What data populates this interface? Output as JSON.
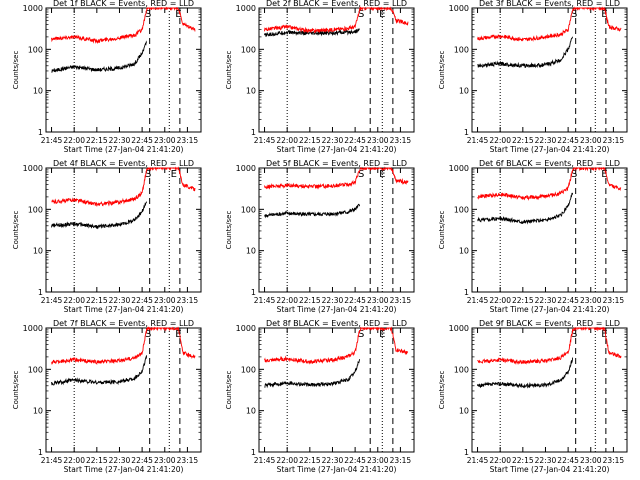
{
  "chart_data": [
    {
      "type": "line",
      "title": "Det 1f BLACK = Events, RED = LLD",
      "xlabel": "Start Time (27-Jan-04 21:41:20)",
      "ylabel": "Counts/sec",
      "x_ticks": [
        "21:45",
        "22:00",
        "22:15",
        "22:30",
        "22:45",
        "23:00",
        "23:15"
      ],
      "y_ticks": [
        "1",
        "10",
        "100",
        "1000"
      ],
      "ylim": [
        1,
        1000
      ],
      "y_scale": "log",
      "xlim": [
        "21:41:20",
        "23:24"
      ],
      "markers": [
        {
          "label": "S",
          "time": "22:49"
        },
        {
          "label": "E",
          "time": "23:09"
        }
      ],
      "dotted_lines": [
        "22:00",
        "23:03"
      ],
      "dashed_lines": [
        "22:50",
        "23:10"
      ],
      "series": [
        {
          "name": "BLACK",
          "color": "#000000",
          "x": [
            "21:45",
            "22:00",
            "22:15",
            "22:30",
            "22:40",
            "22:45",
            "22:48"
          ],
          "y": [
            30,
            38,
            32,
            35,
            45,
            80,
            150
          ]
        },
        {
          "name": "RED",
          "color": "#ff0000",
          "x": [
            "21:45",
            "22:00",
            "22:15",
            "22:30",
            "22:40",
            "22:45",
            "22:48",
            "22:49",
            "22:52",
            "23:09",
            "23:12",
            "23:20"
          ],
          "y": [
            180,
            200,
            160,
            190,
            220,
            300,
            900,
            1000,
            1000,
            1000,
            400,
            300
          ]
        }
      ]
    },
    {
      "type": "line",
      "title": "Det 2f BLACK = Events, RED = LLD",
      "xlabel": "Start Time (27-Jan-04 21:41:20)",
      "ylabel": "Counts/sec",
      "x_ticks": [
        "21:45",
        "22:00",
        "22:15",
        "22:30",
        "22:45",
        "23:00",
        "23:15"
      ],
      "y_ticks": [
        "1",
        "10",
        "100",
        "1000"
      ],
      "ylim": [
        1,
        1000
      ],
      "y_scale": "log",
      "markers": [
        {
          "label": "S",
          "time": "22:49"
        },
        {
          "label": "E",
          "time": "23:03"
        }
      ],
      "dotted_lines": [
        "22:00",
        "23:03"
      ],
      "dashed_lines": [
        "22:55",
        "23:10"
      ],
      "series": [
        {
          "name": "BLACK",
          "color": "#000000",
          "x": [
            "21:45",
            "22:00",
            "22:15",
            "22:30",
            "22:40",
            "22:45",
            "22:48"
          ],
          "y": [
            220,
            260,
            240,
            250,
            260,
            270,
            300
          ]
        },
        {
          "name": "RED",
          "color": "#ff0000",
          "x": [
            "21:45",
            "22:00",
            "22:15",
            "22:30",
            "22:40",
            "22:45",
            "22:48",
            "22:49",
            "22:52",
            "23:09",
            "23:12",
            "23:20"
          ],
          "y": [
            300,
            350,
            280,
            300,
            320,
            350,
            900,
            1000,
            1000,
            1000,
            500,
            420
          ]
        }
      ]
    },
    {
      "type": "line",
      "title": "Det 3f BLACK = Events, RED = LLD",
      "xlabel": "Start Time (27-Jan-04 21:41:20)",
      "ylabel": "Counts/sec",
      "x_ticks": [
        "21:45",
        "22:00",
        "22:15",
        "22:30",
        "22:45",
        "23:00",
        "23:15"
      ],
      "y_ticks": [
        "1",
        "10",
        "100",
        "1000"
      ],
      "ylim": [
        1,
        1000
      ],
      "y_scale": "log",
      "markers": [
        {
          "label": "S",
          "time": "22:49"
        },
        {
          "label": "E",
          "time": "23:09"
        }
      ],
      "dotted_lines": [
        "22:00",
        "23:03"
      ],
      "dashed_lines": [
        "22:50",
        "23:10"
      ],
      "series": [
        {
          "name": "BLACK",
          "color": "#000000",
          "x": [
            "21:45",
            "22:00",
            "22:15",
            "22:30",
            "22:40",
            "22:45",
            "22:48"
          ],
          "y": [
            40,
            45,
            40,
            42,
            55,
            100,
            200
          ]
        },
        {
          "name": "RED",
          "color": "#ff0000",
          "x": [
            "21:45",
            "22:00",
            "22:15",
            "22:30",
            "22:40",
            "22:45",
            "22:48",
            "22:49",
            "22:52",
            "23:09",
            "23:12",
            "23:20"
          ],
          "y": [
            180,
            210,
            170,
            200,
            230,
            300,
            900,
            1000,
            1000,
            1000,
            350,
            300
          ]
        }
      ]
    },
    {
      "type": "line",
      "title": "Det 4f BLACK = Events, RED = LLD",
      "xlabel": "Start Time (27-Jan-04 21:41:20)",
      "ylabel": "Counts/sec",
      "x_ticks": [
        "21:45",
        "22:00",
        "22:15",
        "22:30",
        "22:45",
        "23:00",
        "23:15"
      ],
      "y_ticks": [
        "1",
        "10",
        "100",
        "1000"
      ],
      "ylim": [
        1,
        1000
      ],
      "y_scale": "log",
      "markers": [
        {
          "label": "S",
          "time": "22:49"
        },
        {
          "label": "E",
          "time": "23:06"
        }
      ],
      "dotted_lines": [
        "22:00",
        "23:03"
      ],
      "dashed_lines": [
        "22:50",
        "23:10"
      ],
      "series": [
        {
          "name": "BLACK",
          "color": "#000000",
          "x": [
            "21:45",
            "22:00",
            "22:15",
            "22:30",
            "22:40",
            "22:45",
            "22:48"
          ],
          "y": [
            40,
            45,
            38,
            42,
            55,
            90,
            150
          ]
        },
        {
          "name": "RED",
          "color": "#ff0000",
          "x": [
            "21:45",
            "22:00",
            "22:15",
            "22:30",
            "22:40",
            "22:45",
            "22:48",
            "22:49",
            "22:52",
            "23:09",
            "23:12",
            "23:20"
          ],
          "y": [
            150,
            170,
            130,
            150,
            180,
            250,
            900,
            1000,
            1000,
            1000,
            400,
            300
          ]
        }
      ]
    },
    {
      "type": "line",
      "title": "Det 5f BLACK = Events, RED = LLD",
      "xlabel": "Start Time (27-Jan-04 21:41:20)",
      "ylabel": "Counts/sec",
      "x_ticks": [
        "21:45",
        "22:00",
        "22:15",
        "22:30",
        "22:45",
        "23:00",
        "23:15"
      ],
      "y_ticks": [
        "1",
        "10",
        "100",
        "1000"
      ],
      "ylim": [
        1,
        1000
      ],
      "y_scale": "log",
      "markers": [
        {
          "label": "S",
          "time": "22:49"
        },
        {
          "label": "E",
          "time": "23:03"
        }
      ],
      "dotted_lines": [
        "22:00",
        "23:03"
      ],
      "dashed_lines": [
        "22:55",
        "23:10"
      ],
      "series": [
        {
          "name": "BLACK",
          "color": "#000000",
          "x": [
            "21:45",
            "22:00",
            "22:15",
            "22:30",
            "22:40",
            "22:45",
            "22:48"
          ],
          "y": [
            70,
            80,
            75,
            78,
            85,
            100,
            130
          ]
        },
        {
          "name": "RED",
          "color": "#ff0000",
          "x": [
            "21:45",
            "22:00",
            "22:15",
            "22:30",
            "22:40",
            "22:45",
            "22:48",
            "22:49",
            "22:52",
            "23:09",
            "23:12",
            "23:20"
          ],
          "y": [
            350,
            380,
            360,
            370,
            400,
            450,
            900,
            1000,
            1000,
            1000,
            500,
            450
          ]
        }
      ]
    },
    {
      "type": "line",
      "title": "Det 6f BLACK = Events, RED = LLD",
      "xlabel": "Start Time (27-Jan-04 21:41:20)",
      "ylabel": "Counts/sec",
      "x_ticks": [
        "21:45",
        "22:00",
        "22:15",
        "22:30",
        "22:45",
        "23:00",
        "23:15"
      ],
      "y_ticks": [
        "1",
        "10",
        "100",
        "1000"
      ],
      "ylim": [
        1,
        1000
      ],
      "y_scale": "log",
      "markers": [
        {
          "label": "S",
          "time": "22:49"
        },
        {
          "label": "E",
          "time": "23:09"
        }
      ],
      "dotted_lines": [
        "22:00",
        "23:03"
      ],
      "dashed_lines": [
        "22:50",
        "23:10"
      ],
      "series": [
        {
          "name": "BLACK",
          "color": "#000000",
          "x": [
            "21:45",
            "22:00",
            "22:15",
            "22:30",
            "22:40",
            "22:45",
            "22:48"
          ],
          "y": [
            55,
            60,
            50,
            55,
            70,
            120,
            250
          ]
        },
        {
          "name": "RED",
          "color": "#ff0000",
          "x": [
            "21:45",
            "22:00",
            "22:15",
            "22:30",
            "22:40",
            "22:45",
            "22:48",
            "22:49",
            "22:52",
            "23:09",
            "23:12",
            "23:20"
          ],
          "y": [
            200,
            230,
            190,
            210,
            240,
            320,
            900,
            1000,
            1000,
            1000,
            400,
            300
          ]
        }
      ]
    },
    {
      "type": "line",
      "title": "Det 7f BLACK = Events, RED = LLD",
      "xlabel": "Start Time (27-Jan-04 21:41:20)",
      "ylabel": "Counts/sec",
      "x_ticks": [
        "21:45",
        "22:00",
        "22:15",
        "22:30",
        "22:45",
        "23:00",
        "23:15"
      ],
      "y_ticks": [
        "1",
        "10",
        "100",
        "1000"
      ],
      "ylim": [
        1,
        1000
      ],
      "y_scale": "log",
      "markers": [
        {
          "label": "S",
          "time": "22:49"
        },
        {
          "label": "E",
          "time": "23:09"
        }
      ],
      "dotted_lines": [
        "22:00",
        "23:03"
      ],
      "dashed_lines": [
        "22:50",
        "23:10"
      ],
      "series": [
        {
          "name": "BLACK",
          "color": "#000000",
          "x": [
            "21:45",
            "22:00",
            "22:15",
            "22:30",
            "22:40",
            "22:45",
            "22:48"
          ],
          "y": [
            45,
            55,
            48,
            50,
            60,
            90,
            200
          ]
        },
        {
          "name": "RED",
          "color": "#ff0000",
          "x": [
            "21:45",
            "22:00",
            "22:15",
            "22:30",
            "22:40",
            "22:45",
            "22:48",
            "22:49",
            "22:52",
            "23:09",
            "23:12",
            "23:20"
          ],
          "y": [
            150,
            170,
            150,
            160,
            190,
            250,
            900,
            1000,
            1000,
            1000,
            250,
            200
          ]
        }
      ]
    },
    {
      "type": "line",
      "title": "Det 8f BLACK = Events, RED = LLD",
      "xlabel": "Start Time (27-Jan-04 21:41:20)",
      "ylabel": "Counts/sec",
      "x_ticks": [
        "21:45",
        "22:00",
        "22:15",
        "22:30",
        "22:45",
        "23:00",
        "23:15"
      ],
      "y_ticks": [
        "1",
        "10",
        "100",
        "1000"
      ],
      "ylim": [
        1,
        1000
      ],
      "y_scale": "log",
      "markers": [
        {
          "label": "S",
          "time": "22:49"
        },
        {
          "label": "E",
          "time": "23:03"
        }
      ],
      "dotted_lines": [
        "22:00",
        "23:03"
      ],
      "dashed_lines": [
        "22:55",
        "23:10"
      ],
      "series": [
        {
          "name": "BLACK",
          "color": "#000000",
          "x": [
            "21:45",
            "22:00",
            "22:15",
            "22:30",
            "22:40",
            "22:45",
            "22:48"
          ],
          "y": [
            40,
            48,
            42,
            45,
            55,
            85,
            180
          ]
        },
        {
          "name": "RED",
          "color": "#ff0000",
          "x": [
            "21:45",
            "22:00",
            "22:15",
            "22:30",
            "22:40",
            "22:45",
            "22:48",
            "22:49",
            "22:52",
            "23:09",
            "23:12",
            "23:20"
          ],
          "y": [
            160,
            180,
            150,
            170,
            200,
            260,
            900,
            1000,
            1000,
            1000,
            300,
            250
          ]
        }
      ]
    },
    {
      "type": "line",
      "title": "Det 9f BLACK = Events, RED = LLD",
      "xlabel": "Start Time (27-Jan-04 21:41:20)",
      "ylabel": "Counts/sec",
      "x_ticks": [
        "21:45",
        "22:00",
        "22:15",
        "22:30",
        "22:45",
        "23:00",
        "23:15"
      ],
      "y_ticks": [
        "1",
        "10",
        "100",
        "1000"
      ],
      "ylim": [
        1,
        1000
      ],
      "y_scale": "log",
      "markers": [
        {
          "label": "S",
          "time": "22:49"
        },
        {
          "label": "E",
          "time": "23:09"
        }
      ],
      "dotted_lines": [
        "22:00",
        "23:03"
      ],
      "dashed_lines": [
        "22:50",
        "23:10"
      ],
      "series": [
        {
          "name": "BLACK",
          "color": "#000000",
          "x": [
            "21:45",
            "22:00",
            "22:15",
            "22:30",
            "22:40",
            "22:45",
            "22:48"
          ],
          "y": [
            40,
            45,
            40,
            42,
            55,
            85,
            180
          ]
        },
        {
          "name": "RED",
          "color": "#ff0000",
          "x": [
            "21:45",
            "22:00",
            "22:15",
            "22:30",
            "22:40",
            "22:45",
            "22:48",
            "22:49",
            "22:52",
            "23:09",
            "23:12",
            "23:20"
          ],
          "y": [
            150,
            170,
            150,
            160,
            190,
            250,
            900,
            1000,
            1000,
            1000,
            250,
            200
          ]
        }
      ]
    }
  ]
}
